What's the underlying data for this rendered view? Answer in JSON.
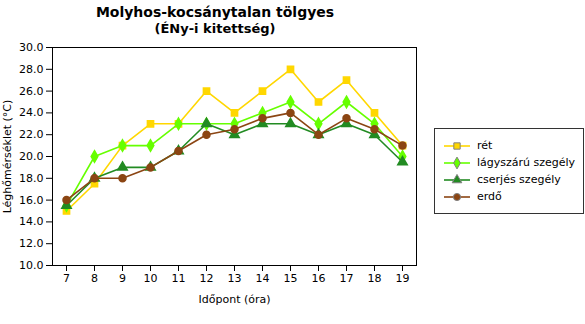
{
  "chart_data": {
    "type": "line",
    "title": "Molyhos-kocsánytalan tölgyes",
    "subtitle": "(ÉNy-i kitettség)",
    "x_label": "Időpont (óra)",
    "y_label": "Léghőmérséklet (°C)",
    "x": [
      7,
      8,
      9,
      10,
      11,
      12,
      13,
      14,
      15,
      16,
      17,
      18,
      19
    ],
    "series": [
      {
        "name": "rét",
        "color": "#FFD700",
        "marker": "square",
        "values": [
          15.0,
          17.5,
          21.0,
          23.0,
          23.0,
          26.0,
          24.0,
          26.0,
          28.0,
          25.0,
          27.0,
          24.0,
          21.0
        ]
      },
      {
        "name": "lágyszárú szegély",
        "color": "#66FF00",
        "marker": "diamond",
        "values": [
          15.5,
          20.0,
          21.0,
          21.0,
          23.0,
          23.0,
          23.0,
          24.0,
          25.0,
          23.0,
          25.0,
          23.0,
          20.0
        ]
      },
      {
        "name": "cserjés szegély",
        "color": "#228B22",
        "marker": "triangle",
        "values": [
          15.5,
          18.0,
          19.0,
          19.0,
          20.5,
          23.0,
          22.0,
          23.0,
          23.0,
          22.0,
          23.0,
          22.0,
          19.5
        ]
      },
      {
        "name": "erdő",
        "color": "#8B4513",
        "marker": "circle",
        "values": [
          16.0,
          18.0,
          18.0,
          19.0,
          20.5,
          22.0,
          22.5,
          23.5,
          24.0,
          22.0,
          23.5,
          22.5,
          21.0
        ]
      }
    ],
    "xlim": [
      6.5,
      19.5
    ],
    "xticks": [
      7,
      8,
      9,
      10,
      11,
      12,
      13,
      14,
      15,
      16,
      17,
      18,
      19
    ],
    "ylim": [
      10.0,
      30.0
    ],
    "yticks": [
      {
        "value": 10,
        "label": "10.0"
      },
      {
        "value": 12,
        "label": "12.0"
      },
      {
        "value": 14,
        "label": "14.0"
      },
      {
        "value": 16,
        "label": "16.0"
      },
      {
        "value": 18,
        "label": "18.0"
      },
      {
        "value": 20,
        "label": "20.0"
      },
      {
        "value": 22,
        "label": "22.0"
      },
      {
        "value": 24,
        "label": "24.0"
      },
      {
        "value": 26,
        "label": "26.0"
      },
      {
        "value": 28,
        "label": "28.0"
      },
      {
        "value": 30,
        "label": "30.0"
      }
    ],
    "grid": false,
    "legend": "right"
  }
}
